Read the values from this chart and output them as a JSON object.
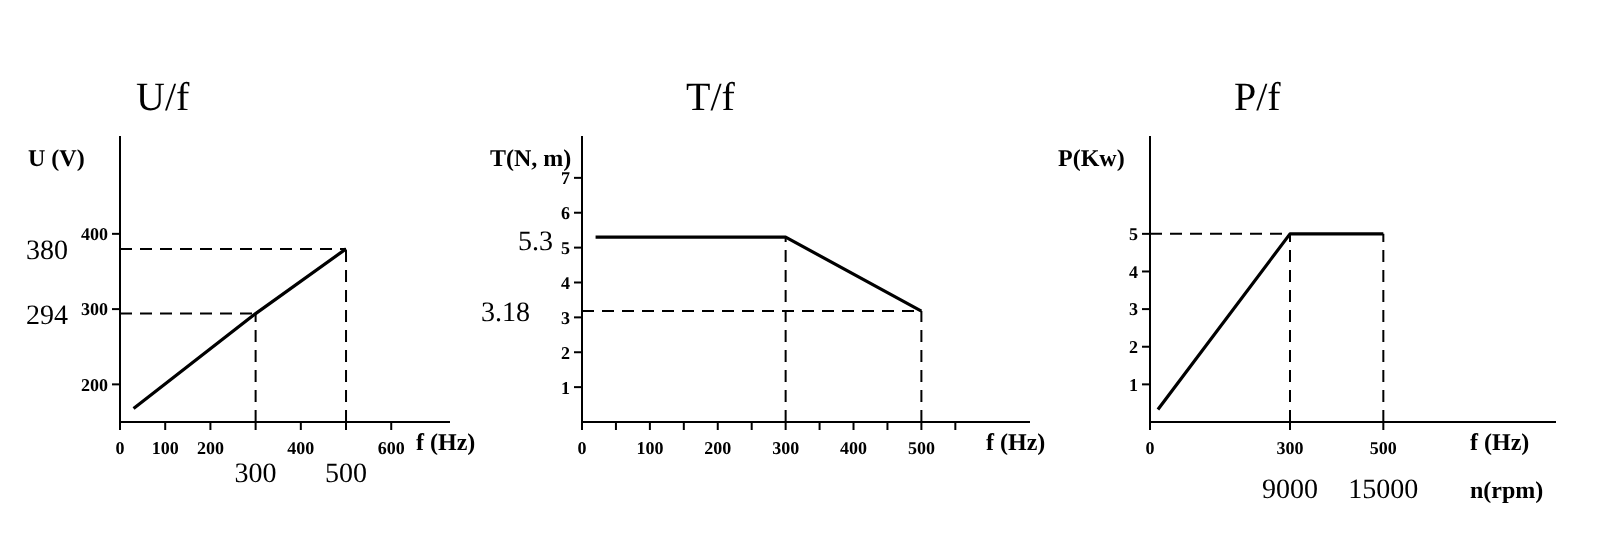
{
  "chart_data": [
    {
      "type": "line",
      "title": "U/f",
      "xlabel": "f (Hz)",
      "ylabel": "U (V)",
      "xlim": [
        0,
        730
      ],
      "ylim": [
        150,
        530
      ],
      "xticks": [
        0,
        100,
        200,
        {
          "value": 300,
          "label": null
        },
        400,
        {
          "value": 500,
          "label": null
        },
        600
      ],
      "yticks": [
        200,
        300,
        400
      ],
      "series": [
        {
          "color": "#000000",
          "x": [
            30,
            300,
            500
          ],
          "values": [
            168,
            294,
            380
          ]
        }
      ],
      "marker": "none",
      "line_style": "solid",
      "ref_lines": [
        {
          "axis": "y",
          "value": 294,
          "label": "294",
          "line_style": "dashed"
        },
        {
          "axis": "y",
          "value": 380,
          "label": "380",
          "line_style": "dashed"
        },
        {
          "axis": "x",
          "value": 300,
          "label": "300",
          "line_style": "dashed"
        },
        {
          "axis": "x",
          "value": 500,
          "label": "500",
          "line_style": "dashed"
        }
      ]
    },
    {
      "type": "line",
      "title": "T/f",
      "xlabel": "f (Hz)",
      "ylabel": "T(N, m)",
      "xlim": [
        0,
        660
      ],
      "ylim": [
        0,
        8.2
      ],
      "xticks": [
        0,
        {
          "value": 50,
          "label": null
        },
        100,
        {
          "value": 150,
          "label": null
        },
        200,
        {
          "value": 250,
          "label": null
        },
        300,
        {
          "value": 350,
          "label": null
        },
        400,
        {
          "value": 450,
          "label": null
        },
        500,
        {
          "value": 550,
          "label": null
        }
      ],
      "yticks": [
        1,
        2,
        3,
        4,
        5,
        6,
        7
      ],
      "series": [
        {
          "color": "#000000",
          "x": [
            20,
            300,
            500
          ],
          "values": [
            5.3,
            5.3,
            3.18
          ]
        }
      ],
      "marker": "none",
      "line_style": "solid",
      "annotations": [
        "5.3"
      ],
      "ref_lines": [
        {
          "axis": "y",
          "value": 3.18,
          "label": "3.18",
          "line_style": "dashed"
        },
        {
          "axis": "x",
          "value": 300,
          "label": null,
          "line_style": "dashed"
        },
        {
          "axis": "x",
          "value": 500,
          "label": null,
          "line_style": "dashed"
        }
      ]
    },
    {
      "type": "line",
      "title": "P/f",
      "xlabel": "f (Hz)",
      "x2label": "n(rpm)",
      "ylabel": "P(Kw)",
      "xlim": [
        0,
        870
      ],
      "ylim": [
        0,
        7.6
      ],
      "x2lim": [
        0,
        26100
      ],
      "xticks": [
        0,
        300,
        500
      ],
      "x2ticks": [
        9000,
        15000
      ],
      "yticks": [
        1,
        2,
        3,
        4,
        5
      ],
      "series": [
        {
          "color": "#000000",
          "x": [
            17,
            300,
            500
          ],
          "values": [
            0.33,
            5,
            5
          ]
        }
      ],
      "marker": "none",
      "line_style": "solid",
      "ref_lines": [
        {
          "axis": "y",
          "value": 5,
          "label": null,
          "line_style": "dashed"
        },
        {
          "axis": "x",
          "value": 300,
          "label": null,
          "line_style": "dashed"
        },
        {
          "axis": "x",
          "value": 500,
          "label": null,
          "line_style": "dashed"
        }
      ]
    }
  ]
}
